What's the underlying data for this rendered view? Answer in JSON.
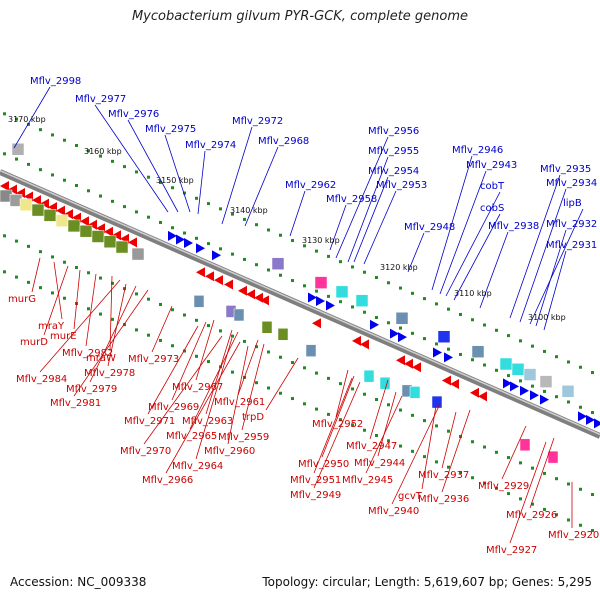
{
  "title": "Mycobacterium gilvum PYR-GCK, complete genome",
  "footer": {
    "accession": "Accession: NC_009338",
    "stats": "Topology: circular; Length: 5,619,607 bp; Genes: 5,295"
  },
  "scale_labels": [
    "3170 kbp",
    "3160 kbp",
    "3150 kbp",
    "3140 kbp",
    "3130 kbp",
    "3120 kbp",
    "3110 kbp",
    "3100 kbp"
  ],
  "top_labels": [
    "Mflv_2998",
    "Mflv_2977",
    "Mflv_2976",
    "Mflv_2975",
    "Mflv_2974",
    "Mflv_2972",
    "Mflv_2968",
    "Mflv_2962",
    "Mflv_2958",
    "Mflv_2956",
    "Mflv_2955",
    "Mflv_2954",
    "Mflv_2953",
    "Mflv_2948",
    "Mflv_2946",
    "Mflv_2943",
    "cobT",
    "cobS",
    "Mflv_2938",
    "Mflv_2935",
    "Mflv_2934",
    "lipB",
    "Mflv_2932",
    "Mflv_2931"
  ],
  "bottom_labels": [
    "murG",
    "mraY",
    "murD",
    "murE",
    "Mflv_2982",
    "mraW",
    "Mflv_2984",
    "Mflv_2978",
    "Mflv_2979",
    "Mflv_2981",
    "Mflv_2973",
    "Mflv_2967",
    "Mflv_2969",
    "Mflv_2971",
    "Mflv_2963",
    "Mflv_2965",
    "Mflv_2970",
    "Mflv_2964",
    "Mflv_2966",
    "Mflv_2961",
    "Mflv_2959",
    "Mflv_2960",
    "trpD",
    "Mflv_2952",
    "Mflv_2947",
    "Mflv_2950",
    "Mflv_2944",
    "Mflv_2951",
    "Mflv_2945",
    "Mflv_2949",
    "Mflv_2937",
    "gcvT",
    "Mflv_2936",
    "Mflv_2940",
    "Mflv_2929",
    "Mflv_2926",
    "Mflv_2927",
    "Mflv_2920"
  ],
  "colors": {
    "title": "#222222",
    "top_labels": "#0000cc",
    "bottom_labels": "#cc0000",
    "backbone": "#999999",
    "forward_genes": "#0000ee",
    "reverse_genes": "#ee0000",
    "rna": "#00dddd",
    "pseudo": "#ff1493",
    "cog_green": "#6b8e23",
    "cog_blue": "#6a8fb0"
  }
}
